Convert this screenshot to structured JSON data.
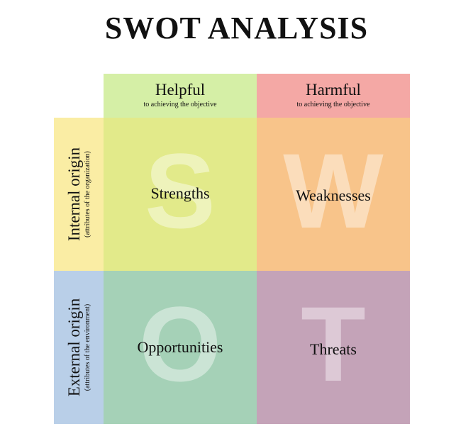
{
  "title": "SWOT ANALYSIS",
  "columns": {
    "helpful": {
      "label": "Helpful",
      "sub": "to achieving the objective",
      "color": "#d5efa6"
    },
    "harmful": {
      "label": "Harmful",
      "sub": "to achieving the objective",
      "color": "#f4a8a5"
    }
  },
  "rows": {
    "internal": {
      "label": "Internal origin",
      "sub": "(attributes of the organization)",
      "color": "#faeda4"
    },
    "external": {
      "label": "External origin",
      "sub": "(attributes of the environment)",
      "color": "#b9cfe8"
    }
  },
  "quadrants": {
    "strengths": {
      "letter": "S",
      "label": "Strengths",
      "color": "#e2ea8a"
    },
    "weaknesses": {
      "letter": "W",
      "label": "Weaknesses",
      "color": "#f8c48a"
    },
    "opportunities": {
      "letter": "O",
      "label": "Opportunities",
      "color": "#a5d1b7"
    },
    "threats": {
      "letter": "T",
      "label": "Threats",
      "color": "#c4a3b8"
    }
  }
}
